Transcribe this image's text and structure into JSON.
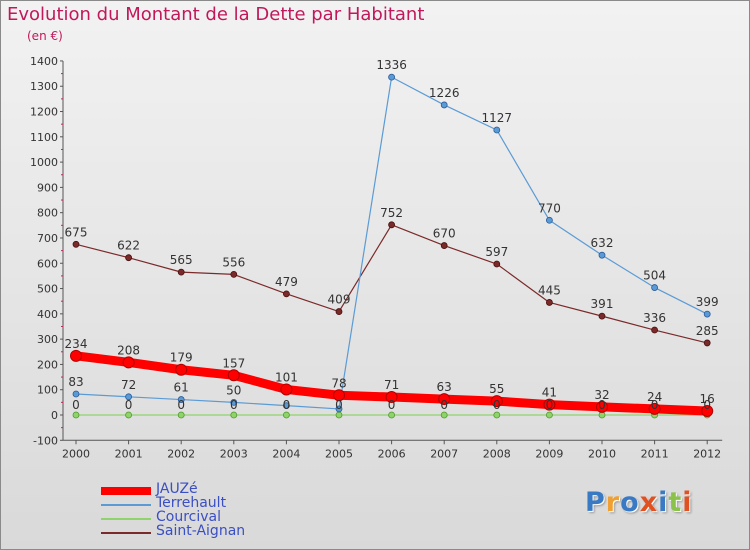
{
  "title": "Evolution du Montant de la Dette par Habitant",
  "unit_label": "(en €)",
  "logo_text": "Proxiti",
  "colors": {
    "title": "#c2185b",
    "axis_text": "#333333",
    "logo": [
      "#3a7ac4",
      "#f0a030",
      "#3a7ac4",
      "#e05020",
      "#3a7ac4",
      "#8bc34a",
      "#e05020"
    ]
  },
  "chart_data": {
    "type": "line",
    "title": "Evolution du Montant de la Dette par Habitant",
    "ylabel": "(en €)",
    "xlabel": "",
    "ylim": [
      -100,
      1400
    ],
    "y_ticks": [
      -100,
      0,
      100,
      200,
      300,
      400,
      500,
      600,
      700,
      800,
      900,
      1000,
      1100,
      1200,
      1300,
      1400
    ],
    "categories": [
      "2000",
      "2001",
      "2002",
      "2003",
      "2004",
      "2005",
      "2006",
      "2007",
      "2008",
      "2009",
      "2010",
      "2011",
      "2012"
    ],
    "series": [
      {
        "name": "JAUZé",
        "color": "#ff0000",
        "values": [
          234,
          208,
          179,
          157,
          101,
          78,
          71,
          63,
          55,
          41,
          32,
          24,
          16
        ],
        "data_labels": [
          "234",
          "208",
          "179",
          "157",
          "101",
          "78",
          "71",
          "63",
          "55",
          "41",
          "32",
          "24",
          "16"
        ]
      },
      {
        "name": "Terrehault",
        "color": "#5b9bd5",
        "values": [
          83,
          72,
          61,
          50,
          37,
          24,
          1336,
          1226,
          1127,
          770,
          632,
          504,
          399
        ],
        "data_labels": [
          "83",
          "72",
          "61",
          "50",
          "",
          "",
          "1336",
          "1226",
          "1127",
          "770",
          "632",
          "504",
          "399"
        ]
      },
      {
        "name": "Courcival",
        "color": "#8ed36b",
        "values": [
          0,
          0,
          0,
          0,
          0,
          0,
          0,
          0,
          0,
          0,
          0,
          0,
          0
        ],
        "data_labels": [
          "0",
          "0",
          "0",
          "0",
          "0",
          "0",
          "0",
          "0",
          "0",
          "0",
          "0",
          "0",
          "0"
        ]
      },
      {
        "name": "Saint-Aignan",
        "color": "#7b2a2a",
        "values": [
          675,
          622,
          565,
          556,
          479,
          409,
          752,
          670,
          597,
          445,
          391,
          336,
          285
        ],
        "data_labels": [
          "675",
          "622",
          "565",
          "556",
          "479",
          "409",
          "752",
          "670",
          "597",
          "445",
          "391",
          "336",
          "285"
        ]
      }
    ],
    "legend_position": "bottom-left",
    "grid": false
  }
}
